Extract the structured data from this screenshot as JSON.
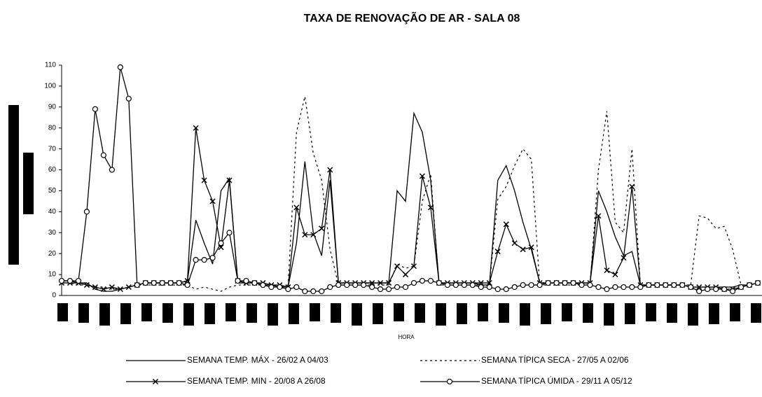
{
  "chart_data": {
    "type": "line",
    "title": "TAXA DE RENOVAÇÃO DE AR - SALA 08",
    "x_label": "HORA",
    "x": [
      0,
      2,
      4,
      6,
      8,
      10,
      12,
      14,
      16,
      18,
      20,
      22,
      24,
      26,
      28,
      30,
      32,
      34,
      36,
      38,
      40,
      42,
      44,
      46,
      48,
      50,
      52,
      54,
      56,
      58,
      60,
      62,
      64,
      66,
      68,
      70,
      72,
      74,
      76,
      78,
      80,
      82,
      84,
      86,
      88,
      90,
      92,
      94,
      96,
      98,
      100,
      102,
      104,
      106,
      108,
      110,
      112,
      114,
      116,
      118,
      120,
      122,
      124,
      126,
      128,
      130,
      132,
      134,
      136,
      138,
      140,
      142,
      144,
      146,
      148,
      150,
      152,
      154,
      156,
      158,
      160,
      162,
      164,
      166
    ],
    "xlim": [
      0,
      167
    ],
    "ylim": [
      0,
      110
    ],
    "yticks": [
      0,
      10,
      20,
      30,
      40,
      50,
      60,
      70,
      80,
      90,
      100,
      110
    ],
    "legend": "bottom",
    "series": [
      {
        "name": "SEMANA TEMP. MÁX - 26/02 A 04/03",
        "color": "#000000",
        "dash": "solid",
        "marker": "none",
        "values": [
          7,
          7,
          6,
          6,
          3,
          2,
          2,
          3,
          4,
          5,
          6,
          6,
          6,
          6,
          6,
          7,
          36,
          25,
          15,
          50,
          56,
          6,
          6,
          6,
          5,
          5,
          4,
          4,
          25,
          64,
          30,
          19,
          55,
          6,
          6,
          6,
          6,
          6,
          6,
          6,
          50,
          45,
          87,
          78,
          55,
          6,
          6,
          6,
          6,
          6,
          5,
          5,
          55,
          62,
          50,
          35,
          22,
          6,
          6,
          6,
          6,
          6,
          6,
          6,
          50,
          40,
          28,
          19,
          21,
          5,
          5,
          5,
          5,
          5,
          5,
          4,
          4,
          4,
          4,
          4,
          4,
          5,
          5,
          6
        ]
      },
      {
        "name": "SEMANA TÍPICA SECA - 27/05 A 02/06",
        "color": "#000000",
        "dash": "dotted",
        "marker": "none",
        "values": [
          6,
          6,
          5,
          5,
          4,
          4,
          3,
          3,
          4,
          5,
          5,
          5,
          5,
          5,
          5,
          5,
          3,
          4,
          3,
          2,
          4,
          5,
          5,
          5,
          5,
          5,
          4,
          5,
          78,
          95,
          68,
          55,
          22,
          5,
          5,
          5,
          5,
          5,
          5,
          5,
          15,
          13,
          14,
          45,
          58,
          5,
          5,
          5,
          5,
          5,
          5,
          5,
          46,
          52,
          62,
          70,
          65,
          5,
          5,
          5,
          5,
          5,
          5,
          5,
          60,
          88,
          35,
          30,
          70,
          5,
          5,
          5,
          5,
          5,
          5,
          5,
          38,
          37,
          32,
          33,
          22,
          5,
          5,
          6
        ]
      },
      {
        "name": "SEMANA TEMP. MIN - 20/08 A 26/08",
        "color": "#000000",
        "dash": "solid",
        "marker": "x",
        "values": [
          6,
          6,
          6,
          5,
          4,
          3,
          4,
          3,
          4,
          5,
          6,
          6,
          6,
          6,
          6,
          7,
          80,
          55,
          45,
          23,
          55,
          7,
          6,
          6,
          6,
          5,
          5,
          4,
          42,
          29,
          29,
          32,
          60,
          6,
          6,
          6,
          6,
          6,
          6,
          6,
          14,
          10,
          14,
          57,
          42,
          6,
          6,
          6,
          6,
          6,
          6,
          6,
          21,
          34,
          25,
          22,
          23,
          6,
          6,
          6,
          6,
          6,
          6,
          6,
          38,
          12,
          10,
          18,
          52,
          5,
          5,
          5,
          5,
          5,
          5,
          4,
          4,
          4,
          4,
          3,
          3,
          4,
          5,
          6
        ]
      },
      {
        "name": "SEMANA TÍPICA ÚMIDA - 29/11 A 05/12",
        "color": "#000000",
        "dash": "solid",
        "marker": "circle",
        "values": [
          7,
          7,
          7,
          40,
          89,
          67,
          60,
          109,
          94,
          5,
          6,
          6,
          6,
          6,
          6,
          5,
          17,
          17,
          18,
          25,
          30,
          7,
          7,
          6,
          5,
          4,
          4,
          3,
          4,
          2,
          2,
          2,
          4,
          5,
          5,
          5,
          5,
          4,
          3,
          3,
          4,
          4,
          6,
          7,
          7,
          6,
          5,
          5,
          5,
          5,
          4,
          4,
          3,
          3,
          4,
          5,
          5,
          5,
          6,
          6,
          6,
          6,
          5,
          5,
          4,
          3,
          4,
          4,
          4,
          4,
          5,
          5,
          5,
          5,
          5,
          4,
          2,
          3,
          3,
          3,
          2,
          4,
          5,
          6
        ]
      }
    ]
  }
}
